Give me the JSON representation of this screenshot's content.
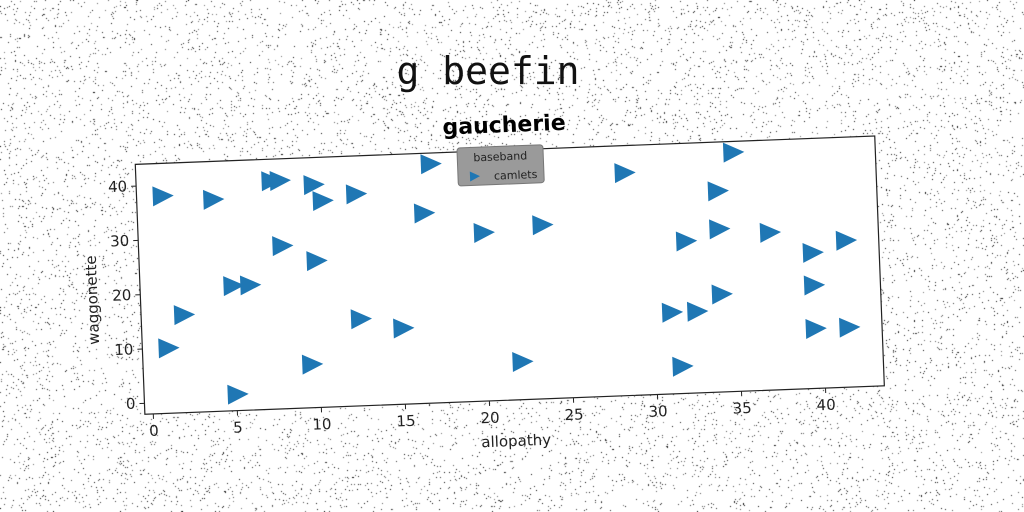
{
  "page": {
    "suptitle": "g beefin"
  },
  "chart_data": {
    "type": "scatter",
    "title": "gaucherie",
    "xlabel": "allopathy",
    "ylabel": "waggonette",
    "xlim": [
      -0.5,
      43.5
    ],
    "ylim": [
      -2,
      44
    ],
    "xticks": [
      0,
      5,
      10,
      15,
      20,
      25,
      30,
      35,
      40
    ],
    "yticks": [
      0,
      10,
      20,
      30,
      40
    ],
    "grid": false,
    "legend": {
      "title": "baseband",
      "placement": "top-center",
      "entries": [
        "camlets"
      ]
    },
    "marker": "triangle-right",
    "series": [
      {
        "name": "camlets",
        "color": "#1f77b4",
        "points": [
          [
            1,
            38
          ],
          [
            4,
            37
          ],
          [
            7.5,
            40
          ],
          [
            8,
            40
          ],
          [
            10,
            39
          ],
          [
            10.5,
            36
          ],
          [
            12.5,
            37
          ],
          [
            17,
            42
          ],
          [
            16.5,
            33
          ],
          [
            28.5,
            39
          ],
          [
            35,
            42
          ],
          [
            34,
            35
          ],
          [
            8,
            28
          ],
          [
            10,
            25
          ],
          [
            20,
            29
          ],
          [
            23.5,
            30
          ],
          [
            32,
            26
          ],
          [
            34,
            28
          ],
          [
            37,
            27
          ],
          [
            39.5,
            23
          ],
          [
            41.5,
            25
          ],
          [
            5,
            21
          ],
          [
            6,
            21
          ],
          [
            2,
            16
          ],
          [
            1,
            10
          ],
          [
            12.5,
            14
          ],
          [
            15,
            12
          ],
          [
            31,
            13
          ],
          [
            32.5,
            13
          ],
          [
            34,
            16
          ],
          [
            39.5,
            17
          ],
          [
            39.5,
            9
          ],
          [
            41.5,
            9
          ],
          [
            9.5,
            6
          ],
          [
            22,
            5
          ],
          [
            31.5,
            3
          ],
          [
            5,
            1
          ]
        ]
      }
    ]
  }
}
